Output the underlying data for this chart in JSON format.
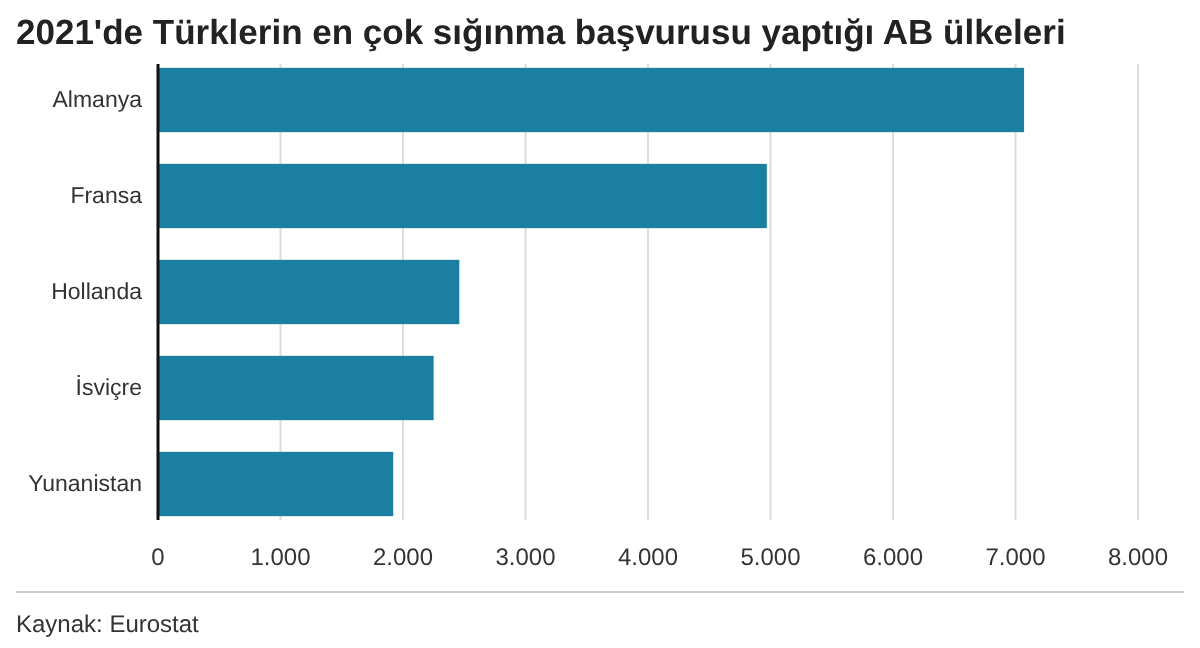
{
  "chart_data": {
    "type": "bar",
    "orientation": "horizontal",
    "title": "2021'de Türklerin en çok sığınma başvurusu yaptığı AB ülkeleri",
    "categories": [
      "Almanya",
      "Fransa",
      "Hollanda",
      "İsviçre",
      "Yunanistan"
    ],
    "values": [
      7070,
      4970,
      2460,
      2250,
      1920
    ],
    "color": "#1b7fa1",
    "xlim": [
      0,
      8000
    ],
    "xticks": [
      0,
      {
        "value": 1000,
        "label": "1.000"
      },
      {
        "value": 2000,
        "label": "2.000"
      },
      {
        "value": 3000,
        "label": "3.000"
      },
      {
        "value": 4000,
        "label": "4.000"
      },
      {
        "value": 5000,
        "label": "5.000"
      },
      {
        "value": 6000,
        "label": "6.000"
      },
      {
        "value": 7000,
        "label": "7.000"
      },
      {
        "value": 8000,
        "label": "8.000"
      }
    ],
    "grid": "x",
    "annotations": [
      "Kaynak: Eurostat"
    ]
  }
}
